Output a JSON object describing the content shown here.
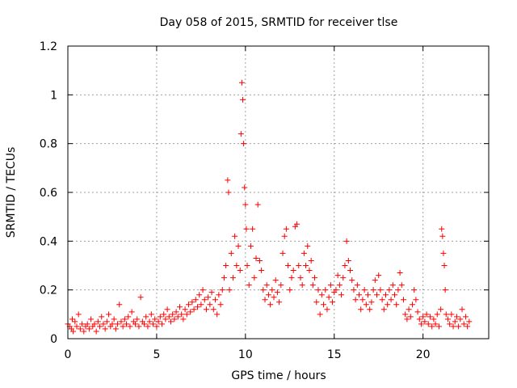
{
  "chart_data": {
    "type": "scatter",
    "title": "Day 058 of 2015, SRMTID for receiver tlse",
    "xlabel": "GPS time / hours",
    "ylabel": "SRMTID / TECUs",
    "xlim": [
      0,
      23.7
    ],
    "ylim": [
      0,
      1.2
    ],
    "xticks": [
      0,
      5,
      10,
      15,
      20
    ],
    "yticks": [
      0,
      0.2,
      0.4,
      0.6,
      0.8,
      1,
      1.2
    ],
    "xtick_labels": [
      "0",
      "5",
      "10",
      "15",
      "20"
    ],
    "ytick_labels": [
      "0",
      "0.2",
      "0.4",
      "0.6",
      "0.8",
      "1",
      "1.2"
    ],
    "grid": true,
    "marker": "+",
    "color": "#ff0000",
    "series": [
      {
        "name": "SRMTID",
        "points": [
          [
            0.0,
            0.06
          ],
          [
            0.1,
            0.05
          ],
          [
            0.2,
            0.04
          ],
          [
            0.25,
            0.08
          ],
          [
            0.3,
            0.03
          ],
          [
            0.4,
            0.07
          ],
          [
            0.5,
            0.05
          ],
          [
            0.6,
            0.1
          ],
          [
            0.7,
            0.04
          ],
          [
            0.8,
            0.06
          ],
          [
            0.9,
            0.03
          ],
          [
            1.0,
            0.05
          ],
          [
            1.1,
            0.06
          ],
          [
            1.2,
            0.04
          ],
          [
            1.3,
            0.08
          ],
          [
            1.4,
            0.05
          ],
          [
            1.5,
            0.06
          ],
          [
            1.6,
            0.03
          ],
          [
            1.7,
            0.07
          ],
          [
            1.8,
            0.05
          ],
          [
            1.9,
            0.09
          ],
          [
            2.0,
            0.06
          ],
          [
            2.1,
            0.04
          ],
          [
            2.2,
            0.07
          ],
          [
            2.3,
            0.1
          ],
          [
            2.4,
            0.05
          ],
          [
            2.5,
            0.06
          ],
          [
            2.6,
            0.08
          ],
          [
            2.7,
            0.04
          ],
          [
            2.8,
            0.06
          ],
          [
            2.9,
            0.14
          ],
          [
            3.0,
            0.07
          ],
          [
            3.1,
            0.05
          ],
          [
            3.2,
            0.08
          ],
          [
            3.3,
            0.06
          ],
          [
            3.4,
            0.09
          ],
          [
            3.5,
            0.05
          ],
          [
            3.6,
            0.11
          ],
          [
            3.7,
            0.07
          ],
          [
            3.8,
            0.06
          ],
          [
            3.9,
            0.08
          ],
          [
            4.0,
            0.05
          ],
          [
            4.1,
            0.17
          ],
          [
            4.2,
            0.07
          ],
          [
            4.3,
            0.06
          ],
          [
            4.4,
            0.09
          ],
          [
            4.5,
            0.05
          ],
          [
            4.6,
            0.07
          ],
          [
            4.7,
            0.1
          ],
          [
            4.8,
            0.06
          ],
          [
            4.9,
            0.08
          ],
          [
            5.0,
            0.05
          ],
          [
            5.1,
            0.07
          ],
          [
            5.2,
            0.09
          ],
          [
            5.3,
            0.06
          ],
          [
            5.4,
            0.1
          ],
          [
            5.5,
            0.08
          ],
          [
            5.6,
            0.12
          ],
          [
            5.7,
            0.09
          ],
          [
            5.8,
            0.07
          ],
          [
            5.9,
            0.1
          ],
          [
            6.0,
            0.08
          ],
          [
            6.1,
            0.11
          ],
          [
            6.2,
            0.09
          ],
          [
            6.3,
            0.13
          ],
          [
            6.4,
            0.1
          ],
          [
            6.5,
            0.08
          ],
          [
            6.6,
            0.12
          ],
          [
            6.7,
            0.1
          ],
          [
            6.8,
            0.14
          ],
          [
            6.9,
            0.11
          ],
          [
            7.0,
            0.15
          ],
          [
            7.1,
            0.12
          ],
          [
            7.2,
            0.16
          ],
          [
            7.3,
            0.13
          ],
          [
            7.4,
            0.18
          ],
          [
            7.5,
            0.14
          ],
          [
            7.6,
            0.2
          ],
          [
            7.7,
            0.16
          ],
          [
            7.8,
            0.12
          ],
          [
            7.9,
            0.17
          ],
          [
            8.0,
            0.14
          ],
          [
            8.1,
            0.19
          ],
          [
            8.2,
            0.12
          ],
          [
            8.3,
            0.16
          ],
          [
            8.4,
            0.1
          ],
          [
            8.5,
            0.18
          ],
          [
            8.6,
            0.14
          ],
          [
            8.7,
            0.2
          ],
          [
            8.8,
            0.25
          ],
          [
            8.9,
            0.3
          ],
          [
            9.0,
            0.65
          ],
          [
            9.05,
            0.6
          ],
          [
            9.1,
            0.2
          ],
          [
            9.2,
            0.35
          ],
          [
            9.3,
            0.25
          ],
          [
            9.4,
            0.42
          ],
          [
            9.5,
            0.3
          ],
          [
            9.6,
            0.38
          ],
          [
            9.7,
            0.28
          ],
          [
            9.75,
            0.84
          ],
          [
            9.8,
            1.05
          ],
          [
            9.85,
            0.98
          ],
          [
            9.9,
            0.8
          ],
          [
            9.95,
            0.62
          ],
          [
            10.0,
            0.55
          ],
          [
            10.05,
            0.45
          ],
          [
            10.1,
            0.3
          ],
          [
            10.2,
            0.22
          ],
          [
            10.3,
            0.38
          ],
          [
            10.4,
            0.45
          ],
          [
            10.5,
            0.25
          ],
          [
            10.6,
            0.33
          ],
          [
            10.7,
            0.55
          ],
          [
            10.8,
            0.32
          ],
          [
            10.9,
            0.28
          ],
          [
            11.0,
            0.2
          ],
          [
            11.1,
            0.16
          ],
          [
            11.2,
            0.22
          ],
          [
            11.3,
            0.18
          ],
          [
            11.4,
            0.14
          ],
          [
            11.5,
            0.2
          ],
          [
            11.6,
            0.17
          ],
          [
            11.7,
            0.24
          ],
          [
            11.8,
            0.19
          ],
          [
            11.9,
            0.15
          ],
          [
            12.0,
            0.22
          ],
          [
            12.1,
            0.35
          ],
          [
            12.2,
            0.42
          ],
          [
            12.3,
            0.45
          ],
          [
            12.4,
            0.3
          ],
          [
            12.5,
            0.2
          ],
          [
            12.6,
            0.25
          ],
          [
            12.7,
            0.28
          ],
          [
            12.8,
            0.46
          ],
          [
            12.9,
            0.47
          ],
          [
            13.0,
            0.3
          ],
          [
            13.1,
            0.25
          ],
          [
            13.2,
            0.22
          ],
          [
            13.3,
            0.35
          ],
          [
            13.4,
            0.3
          ],
          [
            13.5,
            0.38
          ],
          [
            13.6,
            0.28
          ],
          [
            13.7,
            0.32
          ],
          [
            13.8,
            0.22
          ],
          [
            13.9,
            0.25
          ],
          [
            14.0,
            0.15
          ],
          [
            14.1,
            0.2
          ],
          [
            14.2,
            0.1
          ],
          [
            14.3,
            0.18
          ],
          [
            14.4,
            0.14
          ],
          [
            14.5,
            0.2
          ],
          [
            14.6,
            0.12
          ],
          [
            14.7,
            0.17
          ],
          [
            14.8,
            0.22
          ],
          [
            14.9,
            0.15
          ],
          [
            15.0,
            0.19
          ],
          [
            15.1,
            0.2
          ],
          [
            15.2,
            0.26
          ],
          [
            15.3,
            0.22
          ],
          [
            15.4,
            0.18
          ],
          [
            15.5,
            0.25
          ],
          [
            15.6,
            0.3
          ],
          [
            15.7,
            0.4
          ],
          [
            15.8,
            0.32
          ],
          [
            15.9,
            0.28
          ],
          [
            16.0,
            0.24
          ],
          [
            16.1,
            0.2
          ],
          [
            16.2,
            0.16
          ],
          [
            16.3,
            0.22
          ],
          [
            16.4,
            0.18
          ],
          [
            16.5,
            0.12
          ],
          [
            16.6,
            0.16
          ],
          [
            16.7,
            0.2
          ],
          [
            16.8,
            0.14
          ],
          [
            16.9,
            0.18
          ],
          [
            17.0,
            0.12
          ],
          [
            17.1,
            0.15
          ],
          [
            17.2,
            0.2
          ],
          [
            17.3,
            0.24
          ],
          [
            17.4,
            0.18
          ],
          [
            17.5,
            0.26
          ],
          [
            17.6,
            0.2
          ],
          [
            17.7,
            0.16
          ],
          [
            17.8,
            0.12
          ],
          [
            17.9,
            0.18
          ],
          [
            18.0,
            0.14
          ],
          [
            18.1,
            0.2
          ],
          [
            18.2,
            0.16
          ],
          [
            18.3,
            0.22
          ],
          [
            18.4,
            0.18
          ],
          [
            18.5,
            0.14
          ],
          [
            18.6,
            0.2
          ],
          [
            18.7,
            0.27
          ],
          [
            18.8,
            0.22
          ],
          [
            18.9,
            0.16
          ],
          [
            19.0,
            0.1
          ],
          [
            19.1,
            0.08
          ],
          [
            19.2,
            0.12
          ],
          [
            19.3,
            0.09
          ],
          [
            19.4,
            0.14
          ],
          [
            19.5,
            0.2
          ],
          [
            19.6,
            0.16
          ],
          [
            19.7,
            0.11
          ],
          [
            19.8,
            0.08
          ],
          [
            19.9,
            0.06
          ],
          [
            20.0,
            0.09
          ],
          [
            20.1,
            0.07
          ],
          [
            20.2,
            0.1
          ],
          [
            20.3,
            0.06
          ],
          [
            20.4,
            0.09
          ],
          [
            20.5,
            0.05
          ],
          [
            20.6,
            0.08
          ],
          [
            20.7,
            0.06
          ],
          [
            20.8,
            0.1
          ],
          [
            20.9,
            0.05
          ],
          [
            21.0,
            0.12
          ],
          [
            21.05,
            0.45
          ],
          [
            21.1,
            0.42
          ],
          [
            21.15,
            0.35
          ],
          [
            21.2,
            0.3
          ],
          [
            21.25,
            0.2
          ],
          [
            21.3,
            0.1
          ],
          [
            21.4,
            0.08
          ],
          [
            21.5,
            0.06
          ],
          [
            21.6,
            0.1
          ],
          [
            21.7,
            0.05
          ],
          [
            21.8,
            0.07
          ],
          [
            21.9,
            0.09
          ],
          [
            22.0,
            0.05
          ],
          [
            22.1,
            0.08
          ],
          [
            22.2,
            0.12
          ],
          [
            22.3,
            0.06
          ],
          [
            22.4,
            0.09
          ],
          [
            22.5,
            0.05
          ],
          [
            22.6,
            0.07
          ]
        ]
      }
    ]
  }
}
